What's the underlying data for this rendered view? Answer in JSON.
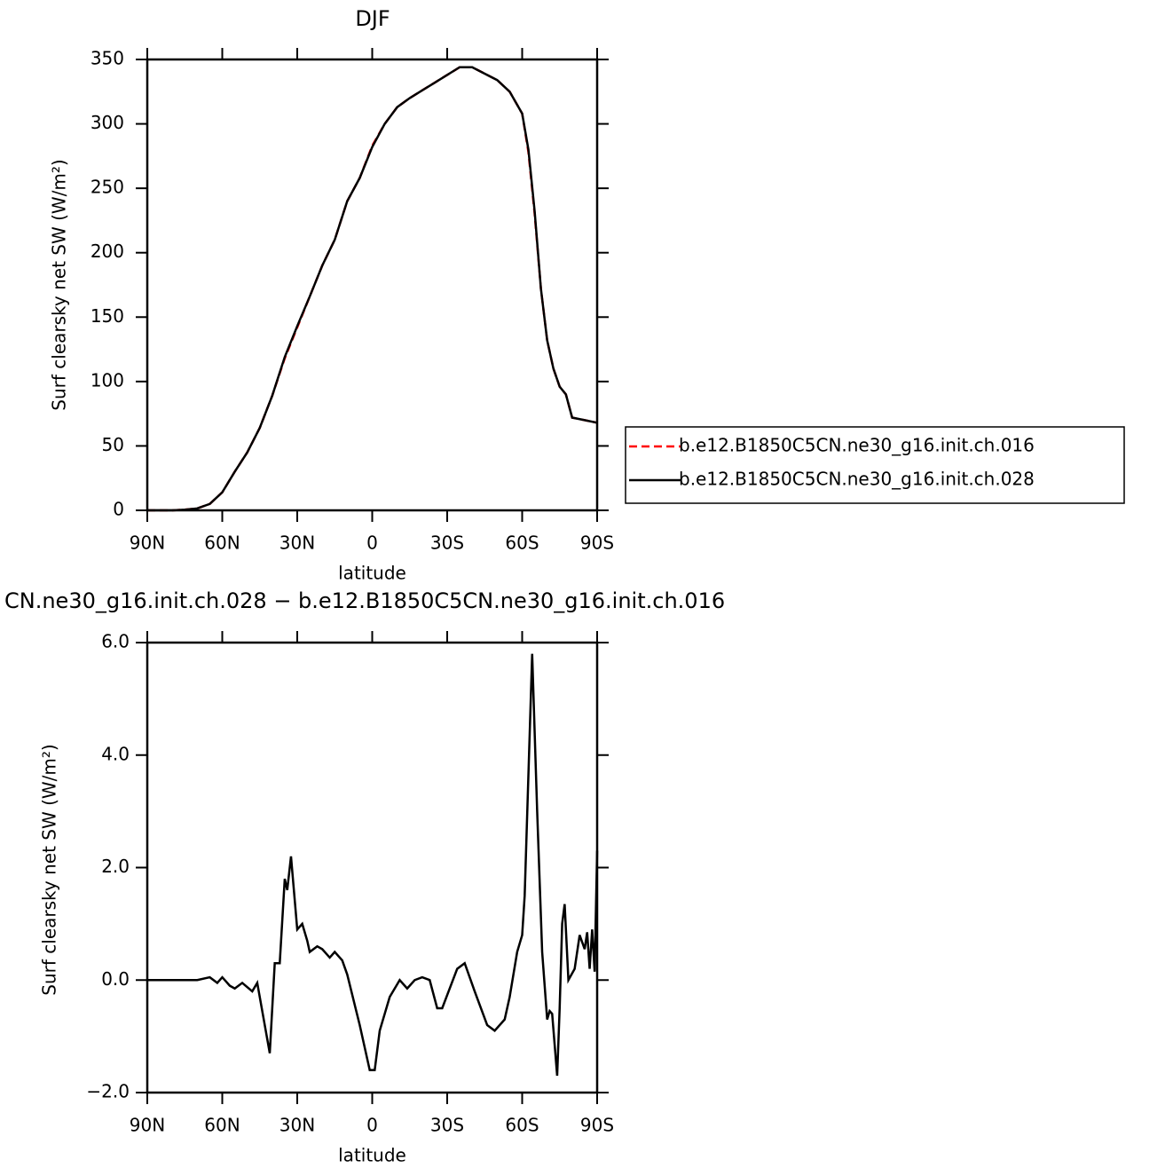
{
  "chart_data": [
    {
      "type": "line",
      "title": "DJF",
      "xlabel": "latitude",
      "ylabel": "Surf clearsky net SW (W/m²)",
      "x": [
        90,
        85,
        80,
        75,
        70,
        65,
        60,
        55,
        50,
        45,
        40,
        35,
        30,
        25,
        20,
        15,
        10,
        5,
        0,
        -5,
        -10,
        -15,
        -20,
        -25,
        -30,
        -35,
        -40,
        -45,
        -50,
        -55,
        -60,
        -62.5,
        -65,
        -67.5,
        -70,
        -72.5,
        -75,
        -77.5,
        -80,
        -85,
        -90
      ],
      "series": [
        {
          "name": "b.e12.B1850C5CN.ne30_g16.init.ch.016",
          "color": "#ff0000",
          "dashed": true,
          "values": [
            0,
            0,
            0,
            0.5,
            1.5,
            5,
            14,
            30,
            45,
            64,
            89,
            118,
            142,
            166,
            190,
            210,
            240,
            258,
            283,
            300,
            313,
            320,
            326,
            332,
            338,
            344,
            344,
            339,
            334,
            325,
            308,
            278,
            230,
            172,
            132,
            110,
            96,
            90,
            72,
            70,
            68
          ]
        },
        {
          "name": "b.e12.B1850C5CN.ne30_g16.init.ch.028",
          "color": "#000000",
          "dashed": false,
          "values": [
            0,
            0,
            0,
            0.5,
            1.5,
            5,
            14,
            30,
            45,
            64,
            89,
            119,
            143,
            166,
            190,
            210,
            240,
            258,
            282,
            300,
            313,
            320,
            326,
            332,
            338,
            344,
            344,
            339,
            334,
            325,
            308,
            280,
            232,
            172,
            132,
            110,
            96,
            90,
            72,
            70,
            68
          ]
        }
      ],
      "xlim": [
        90,
        -90
      ],
      "ylim": [
        0,
        350
      ],
      "xticks": [
        {
          "value": 90,
          "label": "90N"
        },
        {
          "value": 60,
          "label": "60N"
        },
        {
          "value": 30,
          "label": "30N"
        },
        0,
        {
          "value": -30,
          "label": "30S"
        },
        {
          "value": -60,
          "label": "60S"
        },
        {
          "value": -90,
          "label": "90S"
        }
      ],
      "yticks": [
        0,
        50,
        100,
        150,
        200,
        250,
        300,
        350
      ],
      "legend": "right"
    },
    {
      "type": "line",
      "title": "CN.ne30_g16.init.ch.028 − b.e12.B1850C5CN.ne30_g16.init.ch.016",
      "xlabel": "latitude",
      "ylabel": "Surf clearsky net SW (W/m²)",
      "x": [
        90,
        80,
        70,
        65,
        62,
        60,
        57,
        55,
        52,
        48,
        46,
        43,
        41,
        39,
        37,
        35,
        34,
        32.5,
        30,
        28,
        26,
        25,
        22,
        20,
        17,
        15,
        12,
        10,
        5,
        1,
        -1,
        -3,
        -7,
        -11,
        -14,
        -17,
        -20,
        -23,
        -26,
        -28,
        -34,
        -37,
        -41,
        -46,
        -49,
        -53,
        -55,
        -58,
        -60,
        -61,
        -64,
        -66,
        -68,
        -70,
        -71,
        -72,
        -74,
        -75,
        -76,
        -77,
        -78.5,
        -81,
        -83,
        -85,
        -86,
        -87,
        -88,
        -89,
        -90
      ],
      "series": [
        {
          "name": null,
          "color": "#000000",
          "dashed": false,
          "values": [
            0,
            0,
            0,
            0.05,
            -0.05,
            0.05,
            -0.1,
            -0.15,
            -0.05,
            -0.2,
            -0.05,
            -0.8,
            -1.3,
            0.3,
            0.3,
            1.8,
            1.6,
            2.2,
            0.9,
            1.0,
            0.7,
            0.5,
            0.6,
            0.55,
            0.4,
            0.5,
            0.35,
            0.1,
            -0.8,
            -1.6,
            -1.6,
            -0.9,
            -0.3,
            0,
            -0.15,
            0,
            0.05,
            0,
            -0.5,
            -0.5,
            0.2,
            0.3,
            -0.2,
            -0.8,
            -0.9,
            -0.7,
            -0.3,
            0.5,
            0.8,
            1.5,
            5.8,
            3.0,
            0.5,
            -0.7,
            -0.55,
            -0.6,
            -1.7,
            -0.5,
            1.0,
            1.35,
            0,
            0.2,
            0.8,
            0.55,
            0.85,
            0.2,
            0.9,
            0.15,
            2.3
          ]
        }
      ],
      "xlim": [
        90,
        -90
      ],
      "ylim": [
        -2,
        6
      ],
      "xticks": [
        {
          "value": 90,
          "label": "90N"
        },
        {
          "value": 60,
          "label": "60N"
        },
        {
          "value": 30,
          "label": "30N"
        },
        0,
        {
          "value": -30,
          "label": "30S"
        },
        {
          "value": -60,
          "label": "60S"
        },
        {
          "value": -90,
          "label": "90S"
        }
      ],
      "yticks": [
        {
          "value": -2,
          "label": "−2.0"
        },
        {
          "value": 0,
          "label": "0.0"
        },
        {
          "value": 2,
          "label": "2.0"
        },
        {
          "value": 4,
          "label": "4.0"
        },
        {
          "value": 6,
          "label": "6.0"
        }
      ]
    }
  ]
}
